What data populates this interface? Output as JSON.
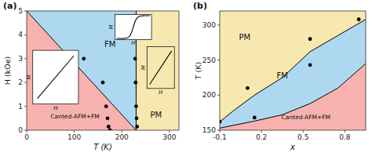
{
  "chart_data": [
    {
      "type": "phase",
      "title": "(a)",
      "xlabel": "T (K)",
      "ylabel": "H (kOe)",
      "xlim": [
        0,
        320
      ],
      "ylim": [
        0,
        5
      ],
      "xticks": [
        0,
        100,
        200,
        300
      ],
      "yticks": [
        0,
        1,
        2,
        3,
        4,
        5
      ],
      "boundaries": [
        {
          "x": [
            0,
            230
          ],
          "y": [
            5,
            0
          ]
        }
      ],
      "vline": 230,
      "regions": [
        {
          "name": "Canted-AFM+FM",
          "color": "#f7b2b0",
          "x": 50,
          "y": 0.45
        },
        {
          "name": "FM",
          "color": "#add8f0",
          "x": 175,
          "y": 3.6
        },
        {
          "name": "PM",
          "color": "#f7e8b0",
          "x": 272,
          "y": 0.65
        }
      ],
      "points": {
        "x": [
          120,
          160,
          167,
          170,
          172,
          175,
          228,
          229,
          230,
          231,
          232
        ],
        "y": [
          3.0,
          2.0,
          1.0,
          0.5,
          0.15,
          0.0,
          3.0,
          2.0,
          1.0,
          0.5,
          0.15
        ]
      },
      "insets": [
        {
          "type": "linear",
          "xlabel": "H",
          "ylabel": "M",
          "color": "#ffffff"
        },
        {
          "type": "sigmoid",
          "xlabel": "H",
          "ylabel": "M",
          "color": "#ffffff"
        },
        {
          "type": "linear",
          "xlabel": "H",
          "ylabel": "M",
          "color": "#f7e8b0"
        }
      ]
    },
    {
      "type": "phase",
      "title": "(b)",
      "xlabel": "x",
      "ylabel": "T (K)",
      "xlim": [
        -0.1,
        0.95
      ],
      "ylim": [
        150,
        320
      ],
      "xticks": [
        -0.1,
        0.2,
        0.5,
        0.8
      ],
      "yticks": [
        150,
        200,
        250,
        300
      ],
      "boundaries": [
        {
          "x": [
            -0.1,
            0.0,
            0.15,
            0.35,
            0.55,
            0.75,
            0.95
          ],
          "y": [
            162,
            178,
            200,
            225,
            262,
            285,
            308
          ]
        },
        {
          "x": [
            -0.1,
            0.15,
            0.35,
            0.55,
            0.75,
            0.95
          ],
          "y": [
            153,
            163,
            172,
            188,
            210,
            245
          ]
        }
      ],
      "regions": [
        {
          "name": "PM",
          "color": "#f7e8b0",
          "x": 0.08,
          "y": 282
        },
        {
          "name": "FM",
          "color": "#add8f0",
          "x": 0.35,
          "y": 228
        },
        {
          "name": "Canted-AFM+FM",
          "color": "#f7b2b0",
          "x": 0.52,
          "y": 168
        }
      ],
      "points": {
        "x": [
          -0.1,
          0.1,
          0.15,
          0.55,
          0.55,
          0.9
        ],
        "y": [
          162,
          210,
          168,
          280,
          243,
          308
        ]
      }
    }
  ]
}
